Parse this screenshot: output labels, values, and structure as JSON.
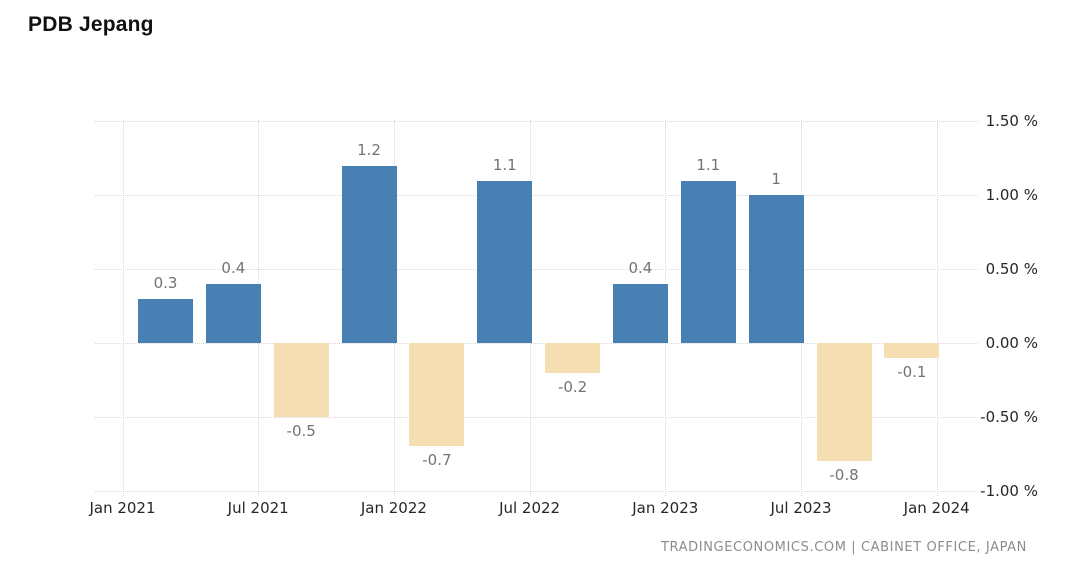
{
  "title": "PDB Jepang",
  "attribution": "TRADINGECONOMICS.COM | CABINET OFFICE, JAPAN",
  "colors": {
    "positive_bar": "#4980b4",
    "negative_bar": "#f4deb2",
    "gridline": "#d9d9d9",
    "bar_label": "#737373",
    "axis_label": "#262626",
    "attribution_text": "#8c8c8c",
    "title_text": "#111111",
    "background": "#ffffff"
  },
  "chart_data": {
    "type": "bar",
    "title": "PDB Jepang",
    "categories": [
      "2021-Q1",
      "2021-Q2",
      "2021-Q3",
      "2021-Q4",
      "2022-Q1",
      "2022-Q2",
      "2022-Q3",
      "2022-Q4",
      "2023-Q1",
      "2023-Q2",
      "2023-Q3",
      "2023-Q4"
    ],
    "values": [
      0.3,
      0.4,
      -0.5,
      1.2,
      -0.7,
      1.1,
      -0.2,
      0.4,
      1.1,
      1,
      -0.8,
      -0.1
    ],
    "bar_labels": [
      "0.3",
      "0.4",
      "-0.5",
      "1.2",
      "-0.7",
      "1.1",
      "-0.2",
      "0.4",
      "1.1",
      "1",
      "-0.8",
      "-0.1"
    ],
    "x_tick_labels": [
      "Jan 2021",
      "Jul 2021",
      "Jan 2022",
      "Jul 2022",
      "Jan 2023",
      "Jul 2023",
      "Jan 2024"
    ],
    "y_tick_labels": [
      "1.50 %",
      "1.00 %",
      "0.50 %",
      "0.00 %",
      "-0.50 %",
      "-1.00 %"
    ],
    "y_tick_values": [
      1.5,
      1.0,
      0.5,
      0.0,
      -0.5,
      -1.0
    ],
    "ylim": [
      -1.0,
      1.6
    ],
    "xlabel": "",
    "ylabel": "",
    "grid": "dotted",
    "legend": "none",
    "y_axis_side": "right",
    "value_labels_shown": true
  }
}
